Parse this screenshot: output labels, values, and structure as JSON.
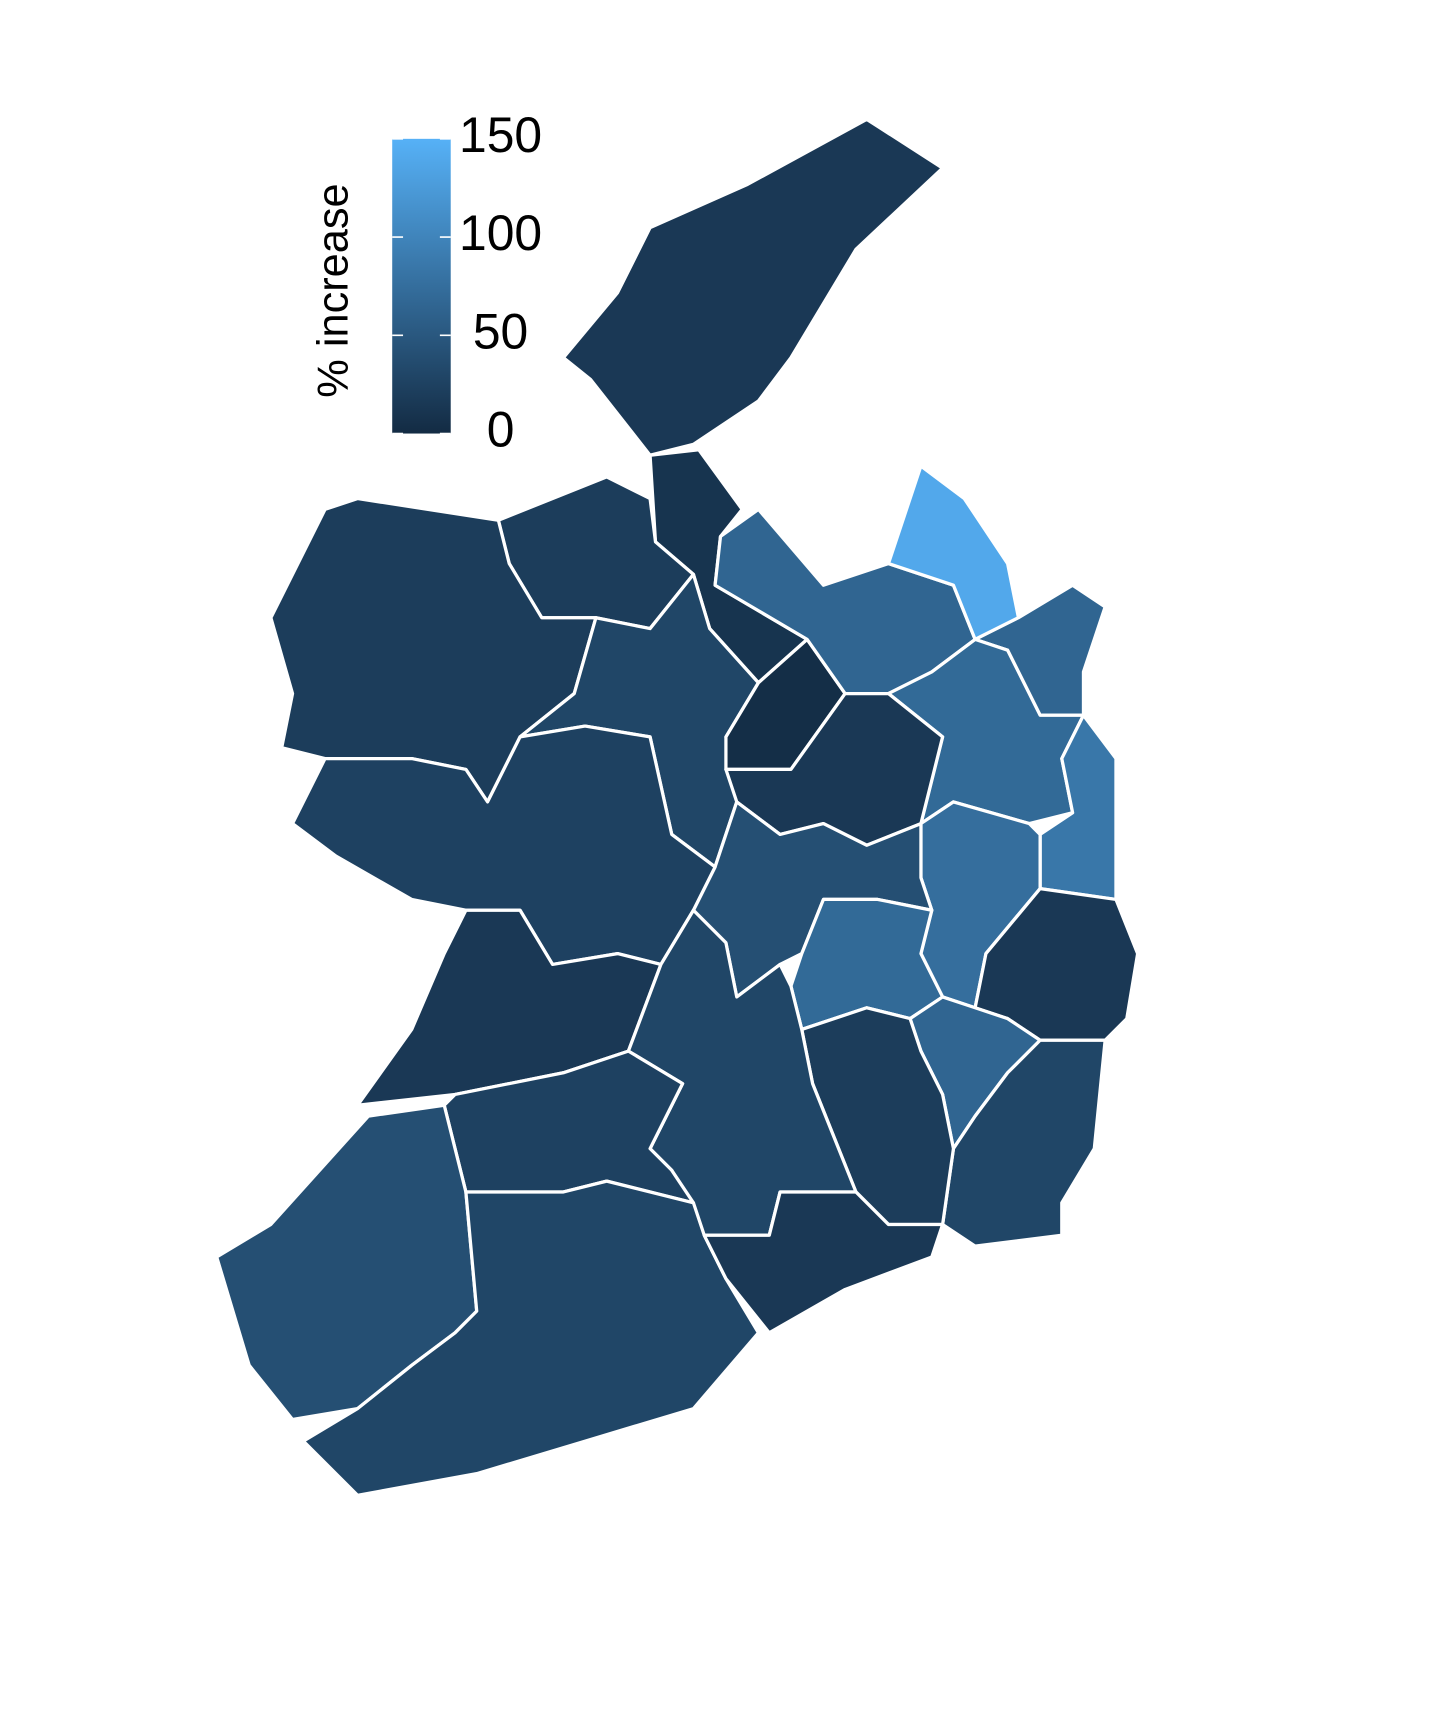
{
  "chart_data": {
    "type": "choropleth",
    "legend_title": "% increase",
    "values": [
      15,
      10,
      20,
      20,
      30,
      3,
      65,
      140,
      65,
      70,
      15,
      85,
      75,
      40,
      70,
      15,
      65,
      30,
      20,
      25,
      15,
      30,
      25,
      40,
      30,
      15
    ],
    "clim": [
      0,
      150
    ],
    "ticks": [
      0,
      50,
      100,
      150
    ],
    "colors": [
      "#132B43",
      "#56B1F7"
    ]
  }
}
